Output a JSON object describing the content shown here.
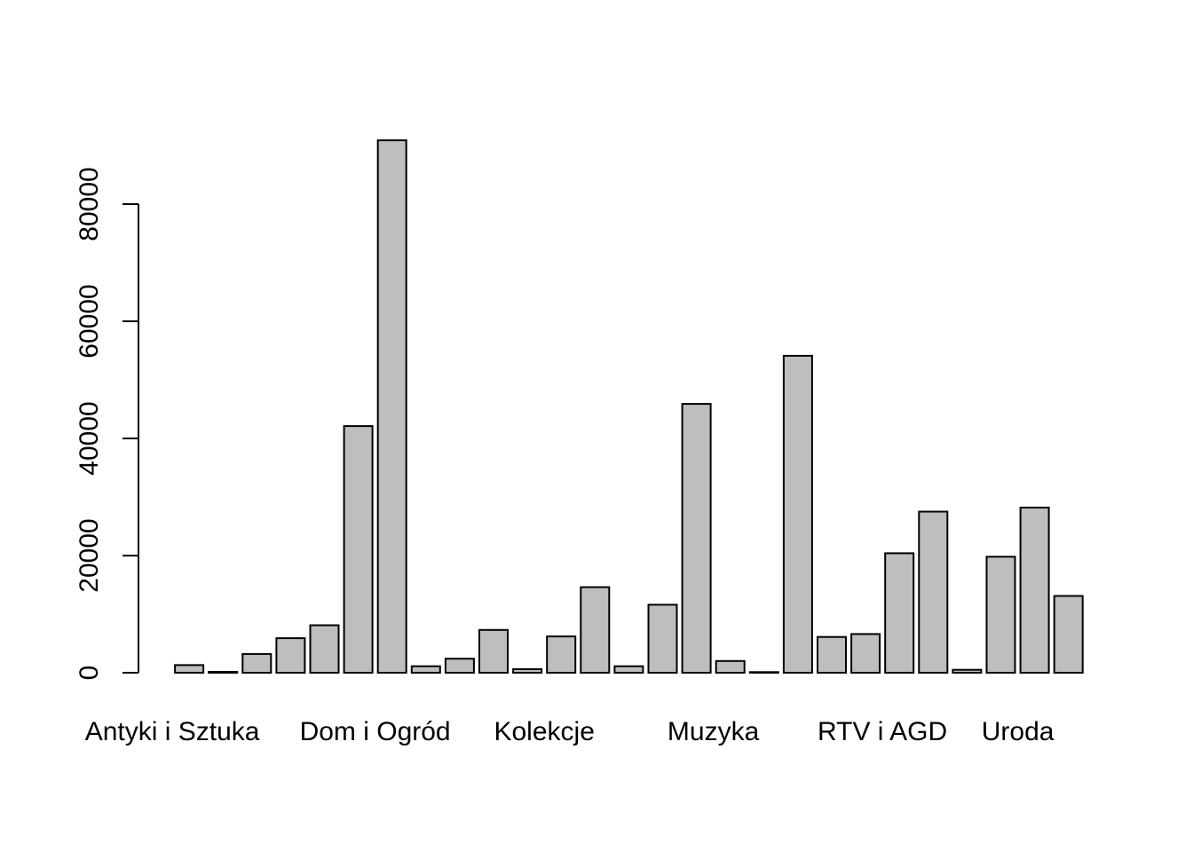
{
  "chart_data": {
    "type": "bar",
    "title": "",
    "xlabel": "",
    "ylabel": "",
    "ylim": [
      0,
      90000
    ],
    "y_ticks": [
      "0",
      "20000",
      "40000",
      "60000",
      "80000"
    ],
    "category_labels": [
      {
        "text": "Antyki i Sztuka",
        "bar_index": 0.5
      },
      {
        "text": "Dom i Ogród",
        "bar_index": 6.5
      },
      {
        "text": "Kolekcje",
        "bar_index": 11.5
      },
      {
        "text": "Muzyka",
        "bar_index": 16.5
      },
      {
        "text": "RTV i AGD",
        "bar_index": 21.5
      },
      {
        "text": "Uroda",
        "bar_index": 25.5
      }
    ],
    "values": [
      0,
      1300,
      150,
      3200,
      5900,
      8100,
      42100,
      90900,
      1100,
      2400,
      7300,
      600,
      6200,
      14600,
      1100,
      11600,
      45900,
      2000,
      100,
      54100,
      6100,
      6600,
      20400,
      27500,
      500,
      19800,
      28200,
      13100
    ],
    "bar_color": "#bebebe",
    "grid": false
  }
}
